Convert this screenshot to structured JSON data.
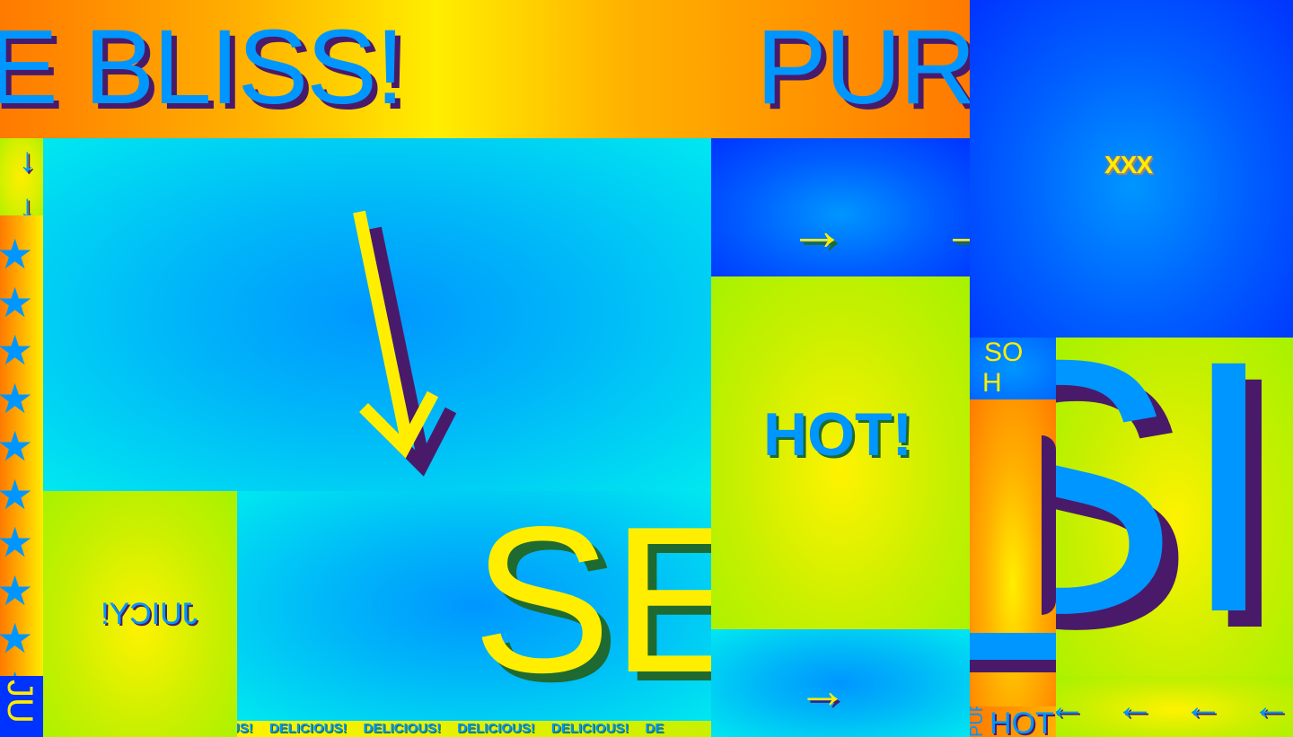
{
  "top_banner": {
    "text_left": "E BLISS!",
    "text_right": "PUR"
  },
  "left_arrow": "↓",
  "stars": "★",
  "left_bottom_text": "JU",
  "center_arrow": "↓",
  "juicy_text": "JUICY!",
  "se_text": "SE",
  "delicious_strip": [
    "US!",
    "DELICIOUS!",
    "DELICIOUS!",
    "DELICIOUS!",
    "DELICIOUS!",
    "DE"
  ],
  "right_arrows": [
    "→",
    "→",
    "→"
  ],
  "hot_text": "HOT!",
  "bottom_right_arrow": "→",
  "xxx_text": "XXX",
  "so_h_text": [
    "SO",
    "H"
  ],
  "sic_text": "SIC",
  "hot_small": "HOT",
  "pur_small": "PUF",
  "left_arrows": [
    "←",
    "←",
    "←",
    "←"
  ],
  "colors": {
    "orange": "#ff7a00",
    "yellow": "#ffee00",
    "cyan": "#00e5ff",
    "blue": "#0033ff",
    "sky_blue": "#0096ff",
    "lime": "#a6f200",
    "purple_shadow": "#4a1a6a",
    "green_shadow": "#1f6a30"
  }
}
